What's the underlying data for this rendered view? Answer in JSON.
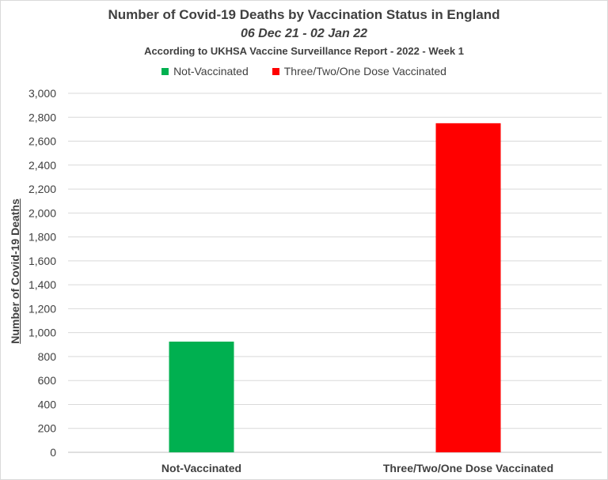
{
  "chart_data": {
    "type": "bar",
    "title": "Number of Covid-19 Deaths by Vaccination Status in England",
    "subtitle": "06 Dec 21 - 02 Jan 22",
    "source_note": "According to UKHSA Vaccine Surveillance Report - 2022 - Week 1",
    "categories": [
      "Not-Vaccinated",
      "Three/Two/One Dose Vaccinated"
    ],
    "values": [
      925,
      2750
    ],
    "colors": [
      "#00b050",
      "#ff0000"
    ],
    "legend": [
      {
        "label": "Not-Vaccinated",
        "color": "#00b050"
      },
      {
        "label": "Three/Two/One Dose Vaccinated",
        "color": "#ff0000"
      }
    ],
    "legend_position": "top",
    "xlabel": "",
    "ylabel": "Number of Covid-19 Deaths",
    "ylim": [
      0,
      3000
    ],
    "yticks": [
      "0",
      "200",
      "400",
      "600",
      "800",
      "1,000",
      "1,200",
      "1,400",
      "1,600",
      "1,800",
      "2,000",
      "2,200",
      "2,400",
      "2,600",
      "2,800",
      "3,000"
    ],
    "grid": true
  }
}
